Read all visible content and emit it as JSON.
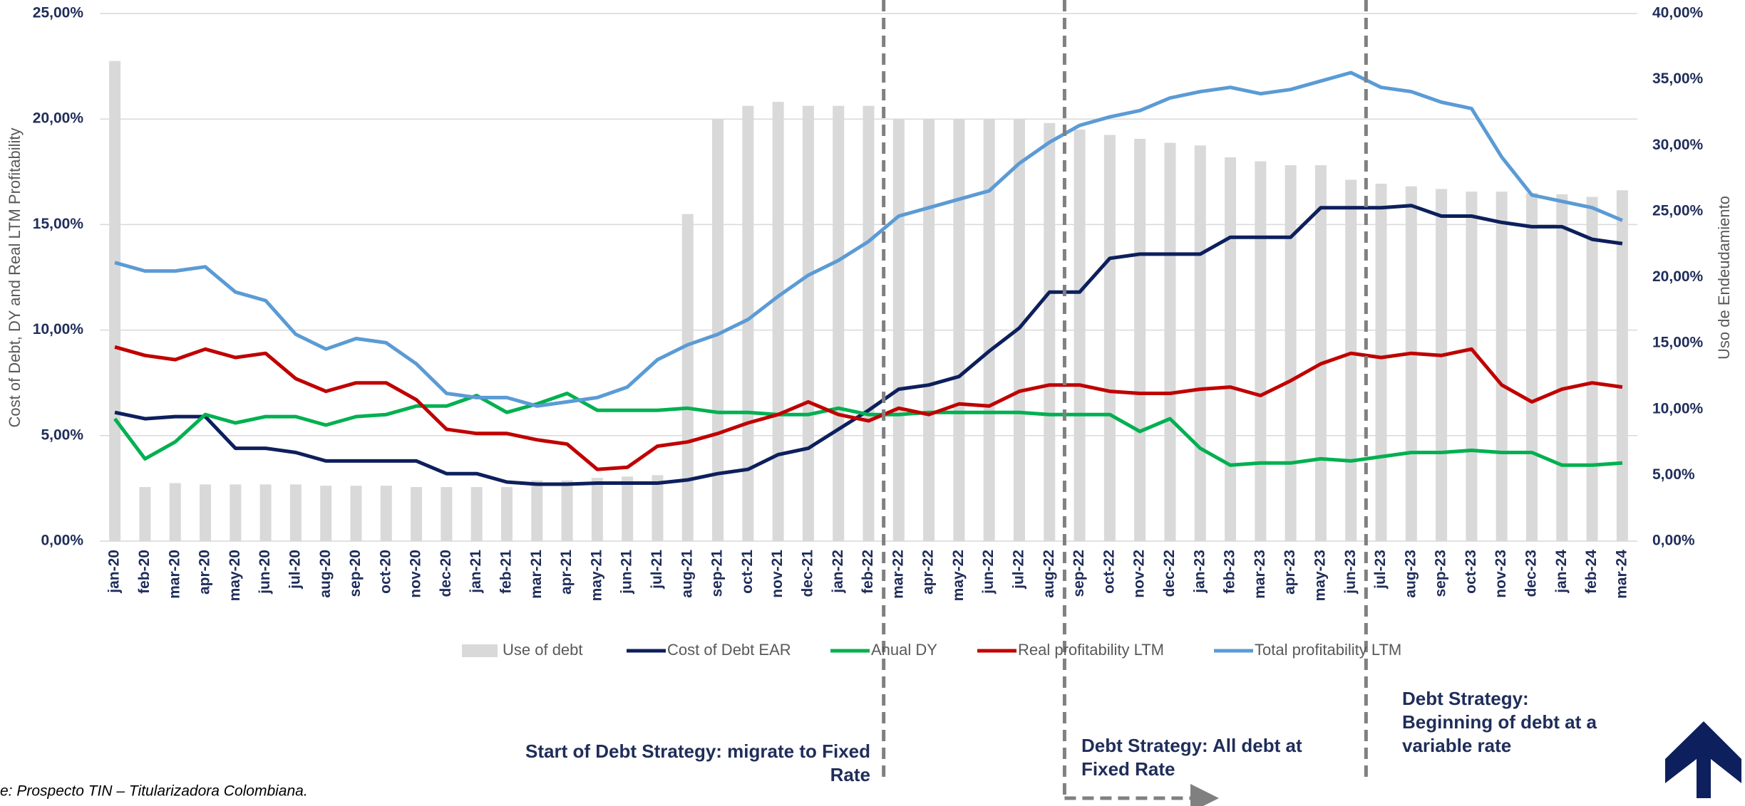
{
  "chart_data": {
    "type": "combo",
    "y_label": "Cost of Debt, DY and Real LTM Profitability",
    "y2_label": "Uso de Endeudamiento",
    "categories": [
      "jan-20",
      "feb-20",
      "mar-20",
      "apr-20",
      "may-20",
      "jun-20",
      "jul-20",
      "aug-20",
      "sep-20",
      "oct-20",
      "nov-20",
      "dec-20",
      "jan-21",
      "feb-21",
      "mar-21",
      "apr-21",
      "may-21",
      "jun-21",
      "jul-21",
      "aug-21",
      "sep-21",
      "oct-21",
      "nov-21",
      "dec-21",
      "jan-22",
      "feb-22",
      "mar-22",
      "apr-22",
      "may-22",
      "jun-22",
      "jul-22",
      "aug-22",
      "sep-22",
      "oct-22",
      "nov-22",
      "dec-22",
      "jan-23",
      "feb-23",
      "mar-23",
      "apr-23",
      "may-23",
      "jun-23",
      "jul-23",
      "aug-23",
      "sep-23",
      "oct-23",
      "nov-23",
      "dec-23",
      "jan-24",
      "feb-24",
      "mar-24"
    ],
    "series": [
      {
        "name": "Use of debt",
        "type": "bar",
        "axis": "y2",
        "color": "#d9d9d9",
        "values": [
          36.4,
          4.1,
          4.4,
          4.3,
          4.3,
          4.3,
          4.3,
          4.2,
          4.2,
          4.2,
          4.1,
          4.1,
          4.1,
          4.1,
          4.6,
          4.6,
          4.8,
          4.9,
          5.0,
          24.8,
          32.0,
          33.0,
          33.3,
          33.0,
          33.0,
          33.0,
          32.0,
          32.0,
          32.0,
          32.0,
          32.0,
          31.7,
          31.2,
          30.8,
          30.5,
          30.2,
          30.0,
          29.1,
          28.8,
          28.5,
          28.5,
          27.4,
          27.1,
          26.9,
          26.7,
          26.5,
          26.5,
          26.4,
          26.3,
          26.1,
          26.6
        ]
      },
      {
        "name": "Cost of Debt EAR",
        "type": "line",
        "color": "#0d1f5c",
        "values": [
          6.1,
          5.8,
          5.9,
          5.9,
          4.4,
          4.4,
          4.2,
          3.8,
          3.8,
          3.8,
          3.8,
          3.2,
          3.2,
          2.8,
          2.7,
          2.7,
          2.75,
          2.75,
          2.75,
          2.9,
          3.2,
          3.4,
          4.1,
          4.4,
          5.3,
          6.2,
          7.2,
          7.4,
          7.8,
          9.0,
          10.1,
          11.8,
          11.8,
          13.4,
          13.6,
          13.6,
          13.6,
          14.4,
          14.4,
          14.4,
          15.8,
          15.8,
          15.8,
          15.9,
          15.4,
          15.4,
          15.1,
          14.9,
          14.9,
          14.3,
          14.1
        ]
      },
      {
        "name": "Anual DY",
        "type": "line",
        "color": "#00b050",
        "values": [
          5.8,
          3.9,
          4.7,
          6.0,
          5.6,
          5.9,
          5.9,
          5.5,
          5.9,
          6.0,
          6.4,
          6.4,
          6.9,
          6.1,
          6.5,
          7.0,
          6.2,
          6.2,
          6.2,
          6.3,
          6.1,
          6.1,
          6.0,
          6.0,
          6.3,
          6.0,
          6.0,
          6.1,
          6.1,
          6.1,
          6.1,
          6.0,
          6.0,
          6.0,
          5.2,
          5.8,
          4.4,
          3.6,
          3.7,
          3.7,
          3.9,
          3.8,
          4.0,
          4.2,
          4.2,
          4.3,
          4.2,
          4.2,
          3.6,
          3.6,
          3.7
        ]
      },
      {
        "name": "Real profitability LTM",
        "type": "line",
        "color": "#c00000",
        "values": [
          9.2,
          8.8,
          8.6,
          9.1,
          8.7,
          8.9,
          7.7,
          7.1,
          7.5,
          7.5,
          6.7,
          5.3,
          5.1,
          5.1,
          4.8,
          4.6,
          3.4,
          3.5,
          4.5,
          4.7,
          5.1,
          5.6,
          6.0,
          6.6,
          6.0,
          5.7,
          6.3,
          6.0,
          6.5,
          6.4,
          7.1,
          7.4,
          7.4,
          7.1,
          7.0,
          7.0,
          7.2,
          7.3,
          6.9,
          7.6,
          8.4,
          8.9,
          8.7,
          8.9,
          8.8,
          9.1,
          7.4,
          6.6,
          7.2,
          7.5,
          7.3
        ]
      },
      {
        "name": "Total profitability LTM",
        "type": "line",
        "color": "#5b9bd5",
        "values": [
          13.2,
          12.8,
          12.8,
          13.0,
          11.8,
          11.4,
          9.8,
          9.1,
          9.6,
          9.4,
          8.4,
          7.0,
          6.8,
          6.8,
          6.4,
          6.6,
          6.8,
          7.3,
          8.6,
          9.3,
          9.8,
          10.5,
          11.6,
          12.6,
          13.3,
          14.2,
          15.4,
          15.8,
          16.2,
          16.6,
          17.9,
          18.9,
          19.7,
          20.1,
          20.4,
          21.0,
          21.3,
          21.5,
          21.2,
          21.4,
          21.8,
          22.2,
          21.5,
          21.3,
          20.8,
          20.5,
          18.2,
          16.4,
          16.1,
          15.8,
          15.2
        ]
      }
    ],
    "ylim": [
      0,
      25
    ],
    "yticks": [
      {
        "value": 0,
        "label": "0,00%"
      },
      {
        "value": 5,
        "label": "5,00%"
      },
      {
        "value": 10,
        "label": "10,00%"
      },
      {
        "value": 15,
        "label": "15,00%"
      },
      {
        "value": 20,
        "label": "20,00%"
      },
      {
        "value": 25,
        "label": "25,00%"
      }
    ],
    "y2lim": [
      0,
      40
    ],
    "y2ticks": [
      {
        "value": 0,
        "label": "0,00%"
      },
      {
        "value": 5,
        "label": "5,00%"
      },
      {
        "value": 10,
        "label": "10,00%"
      },
      {
        "value": 15,
        "label": "15,00%"
      },
      {
        "value": 20,
        "label": "20,00%"
      },
      {
        "value": 25,
        "label": "25,00%"
      },
      {
        "value": 30,
        "label": "30,00%"
      },
      {
        "value": 35,
        "label": "35,00%"
      },
      {
        "value": 40,
        "label": "40,00%"
      }
    ],
    "grid": true,
    "legend": "bottom",
    "annotations": [
      {
        "lines": [
          "Start of Debt Strategy: migrate to Fixed",
          "Rate"
        ]
      },
      {
        "lines": [
          "Debt Strategy: All debt at",
          "Fixed Rate"
        ]
      },
      {
        "lines": [
          "Debt Strategy:",
          "Beginning of debt at a",
          "variable rate"
        ]
      }
    ],
    "source": "e: Prospecto TIN – Titularizadora Colombiana."
  }
}
